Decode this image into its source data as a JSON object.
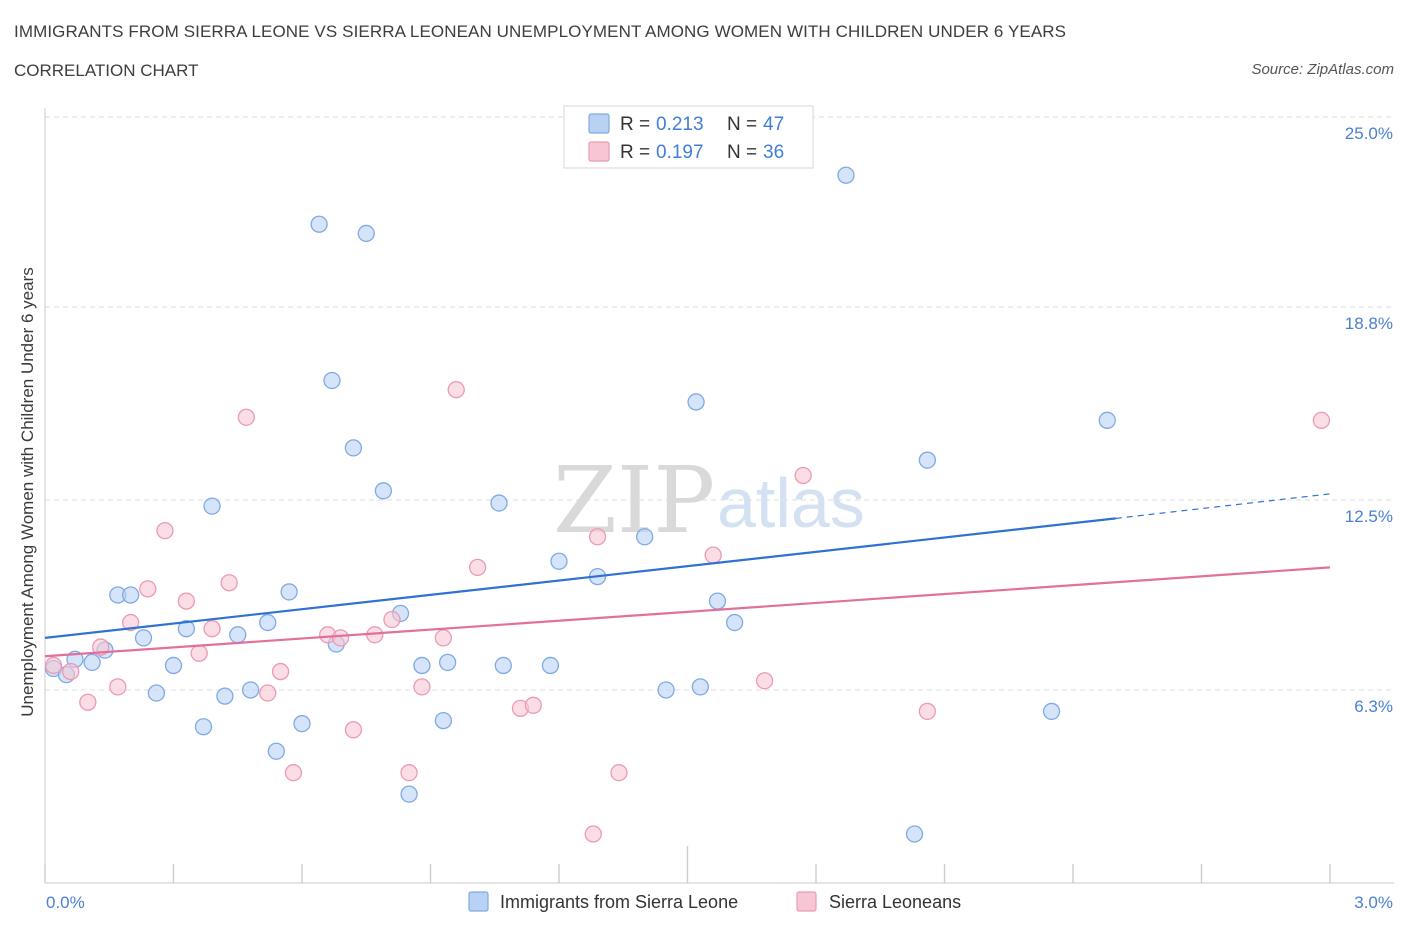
{
  "header": {
    "title": "IMMIGRANTS FROM SIERRA LEONE VS SIERRA LEONEAN UNEMPLOYMENT AMONG WOMEN WITH CHILDREN UNDER 6 YEARS",
    "subtitle": "CORRELATION CHART",
    "source": "Source: ZipAtlas.com"
  },
  "watermark": {
    "zip": "ZIP",
    "atlas": "atlas"
  },
  "legend_top": {
    "rows": [
      {
        "r_label": "R = ",
        "r_value": "0.213",
        "n_label": "N = ",
        "n_value": "47"
      },
      {
        "r_label": "R = ",
        "r_value": "0.197",
        "n_label": "N = ",
        "n_value": "36"
      }
    ]
  },
  "colors": {
    "blue_fill": "#b9d2f3",
    "blue_stroke": "#7faae3",
    "blue_line": "#2f72d0",
    "pink_fill": "#f7c6d4",
    "pink_stroke": "#ec9ab3",
    "pink_line": "#e2709a",
    "grid": "#dcdcdc",
    "tick_label": "#4a7fd4"
  },
  "chart_data": {
    "type": "scatter",
    "title": "IMMIGRANTS FROM SIERRA LEONE VS SIERRA LEONEAN UNEMPLOYMENT AMONG WOMEN WITH CHILDREN UNDER 6 YEARS",
    "xlabel": "",
    "ylabel": "Unemployment Among Women with Children Under 6 years",
    "xlim": [
      0,
      3.0
    ],
    "ylim": [
      0,
      25.0
    ],
    "x_tick_labels": [
      "0.0%",
      "3.0%"
    ],
    "y_ticks": [
      6.3,
      12.5,
      18.8,
      25.0
    ],
    "y_tick_labels": [
      "6.3%",
      "12.5%",
      "18.8%",
      "25.0%"
    ],
    "grid": "horizontal dashed",
    "legend_placement": "bottom-center",
    "series": [
      {
        "name": "Immigrants from Sierra Leone",
        "color": "#7faae3",
        "trend": {
          "x": [
            0.0,
            2.5
          ],
          "y": [
            8.0,
            11.9
          ],
          "extended_to": [
            3.0,
            12.7
          ]
        },
        "points": [
          {
            "x": 0.02,
            "y": 7.0
          },
          {
            "x": 0.05,
            "y": 6.8
          },
          {
            "x": 0.07,
            "y": 7.3
          },
          {
            "x": 0.11,
            "y": 7.2
          },
          {
            "x": 0.14,
            "y": 7.6
          },
          {
            "x": 0.17,
            "y": 9.4
          },
          {
            "x": 0.2,
            "y": 9.4
          },
          {
            "x": 0.23,
            "y": 8.0
          },
          {
            "x": 0.26,
            "y": 6.2
          },
          {
            "x": 0.3,
            "y": 7.1
          },
          {
            "x": 0.33,
            "y": 8.3
          },
          {
            "x": 0.37,
            "y": 5.1
          },
          {
            "x": 0.39,
            "y": 12.3
          },
          {
            "x": 0.42,
            "y": 6.1
          },
          {
            "x": 0.45,
            "y": 8.1
          },
          {
            "x": 0.48,
            "y": 6.3
          },
          {
            "x": 0.52,
            "y": 8.5
          },
          {
            "x": 0.54,
            "y": 4.3
          },
          {
            "x": 0.57,
            "y": 9.5
          },
          {
            "x": 0.6,
            "y": 5.2
          },
          {
            "x": 0.64,
            "y": 21.5
          },
          {
            "x": 0.67,
            "y": 16.4
          },
          {
            "x": 0.68,
            "y": 7.8
          },
          {
            "x": 0.72,
            "y": 14.2
          },
          {
            "x": 0.75,
            "y": 21.2
          },
          {
            "x": 0.79,
            "y": 12.8
          },
          {
            "x": 0.83,
            "y": 8.8
          },
          {
            "x": 0.85,
            "y": 2.9
          },
          {
            "x": 0.88,
            "y": 7.1
          },
          {
            "x": 0.93,
            "y": 5.3
          },
          {
            "x": 0.94,
            "y": 7.2
          },
          {
            "x": 1.07,
            "y": 7.1
          },
          {
            "x": 1.06,
            "y": 12.4
          },
          {
            "x": 1.18,
            "y": 7.1
          },
          {
            "x": 1.2,
            "y": 10.5
          },
          {
            "x": 1.29,
            "y": 10.0
          },
          {
            "x": 1.4,
            "y": 11.3
          },
          {
            "x": 1.45,
            "y": 6.3
          },
          {
            "x": 1.52,
            "y": 15.7
          },
          {
            "x": 1.53,
            "y": 6.4
          },
          {
            "x": 1.57,
            "y": 9.2
          },
          {
            "x": 1.61,
            "y": 8.5
          },
          {
            "x": 1.87,
            "y": 23.1
          },
          {
            "x": 2.03,
            "y": 1.6
          },
          {
            "x": 2.06,
            "y": 13.8
          },
          {
            "x": 2.35,
            "y": 5.6
          },
          {
            "x": 2.48,
            "y": 15.1
          }
        ]
      },
      {
        "name": "Sierra Leoneans",
        "color": "#ec9ab3",
        "trend": {
          "x": [
            0.0,
            3.0
          ],
          "y": [
            7.4,
            10.3
          ]
        },
        "points": [
          {
            "x": 0.02,
            "y": 7.1
          },
          {
            "x": 0.06,
            "y": 6.9
          },
          {
            "x": 0.1,
            "y": 5.9
          },
          {
            "x": 0.13,
            "y": 7.7
          },
          {
            "x": 0.17,
            "y": 6.4
          },
          {
            "x": 0.2,
            "y": 8.5
          },
          {
            "x": 0.24,
            "y": 9.6
          },
          {
            "x": 0.28,
            "y": 11.5
          },
          {
            "x": 0.33,
            "y": 9.2
          },
          {
            "x": 0.36,
            "y": 7.5
          },
          {
            "x": 0.39,
            "y": 8.3
          },
          {
            "x": 0.43,
            "y": 9.8
          },
          {
            "x": 0.47,
            "y": 15.2
          },
          {
            "x": 0.52,
            "y": 6.2
          },
          {
            "x": 0.55,
            "y": 6.9
          },
          {
            "x": 0.58,
            "y": 3.6
          },
          {
            "x": 0.66,
            "y": 8.1
          },
          {
            "x": 0.69,
            "y": 8.0
          },
          {
            "x": 0.72,
            "y": 5.0
          },
          {
            "x": 0.77,
            "y": 8.1
          },
          {
            "x": 0.81,
            "y": 8.6
          },
          {
            "x": 0.85,
            "y": 3.6
          },
          {
            "x": 0.88,
            "y": 6.4
          },
          {
            "x": 0.93,
            "y": 8.0
          },
          {
            "x": 0.96,
            "y": 16.1
          },
          {
            "x": 1.01,
            "y": 10.3
          },
          {
            "x": 1.11,
            "y": 5.7
          },
          {
            "x": 1.14,
            "y": 5.8
          },
          {
            "x": 1.28,
            "y": 1.6
          },
          {
            "x": 1.29,
            "y": 11.3
          },
          {
            "x": 1.34,
            "y": 3.6
          },
          {
            "x": 1.56,
            "y": 10.7
          },
          {
            "x": 1.68,
            "y": 6.6
          },
          {
            "x": 1.77,
            "y": 13.3
          },
          {
            "x": 2.06,
            "y": 5.6
          },
          {
            "x": 2.98,
            "y": 15.1
          }
        ]
      }
    ]
  }
}
